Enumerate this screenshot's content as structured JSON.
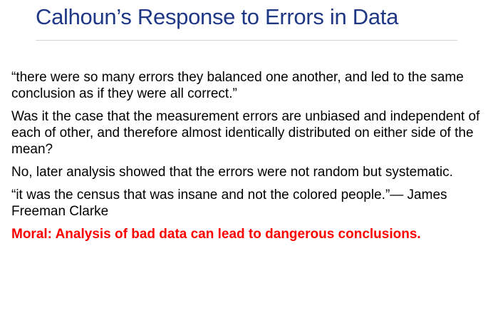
{
  "slide": {
    "title": "Calhoun’s Response to Errors in Data",
    "quote_1": "“there were so many errors they balanced one another, and led to the same conclusion as if they were all correct.”",
    "question": "Was it the case that the measurement errors are unbiased and independent of each of other, and therefore almost identically distributed on either side of the mean?",
    "answer": "No, later analysis showed that the errors were not random but systematic.",
    "quote_2": "“it was the census that was insane and not the colored people.”— James Freeman Clarke",
    "moral": "Moral: Analysis of bad data can lead to dangerous conclusions.",
    "colors": {
      "title": "#1f3886",
      "moral": "#ff0000",
      "rule": "#d4d4d4"
    }
  }
}
